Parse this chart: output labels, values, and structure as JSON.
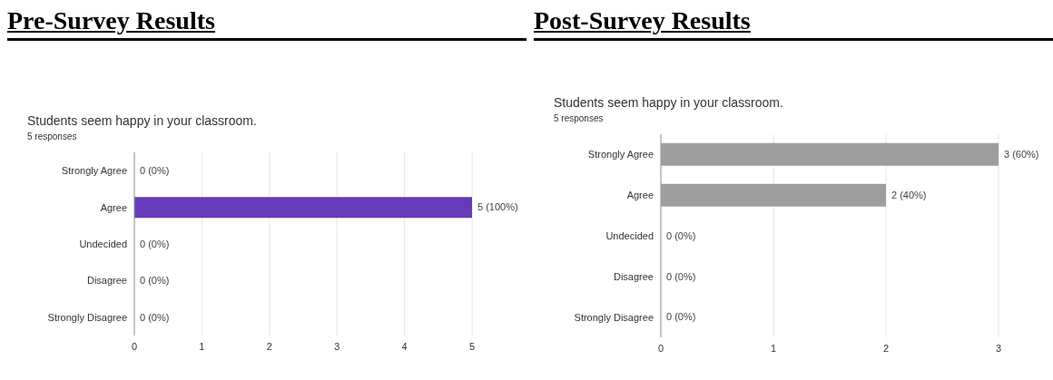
{
  "chart_data": [
    {
      "type": "bar",
      "orientation": "horizontal",
      "title": "Pre-Survey Results",
      "subtitle": "Students seem happy in your classroom.",
      "annotations": [
        "5 responses"
      ],
      "categories": [
        "Strongly Agree",
        "Agree",
        "Undecided",
        "Disagree",
        "Strongly Disagree"
      ],
      "values": [
        0,
        5,
        0,
        0,
        0
      ],
      "color": "#673ab7",
      "value_labels": [
        "0 (0%)",
        "5 (100%)",
        "0 (0%)",
        "0 (0%)",
        "0 (0%)"
      ],
      "xlim": [
        0,
        5
      ],
      "xticks": [
        0,
        1,
        2,
        3,
        4,
        5
      ],
      "grid": "x",
      "legend": false
    },
    {
      "type": "bar",
      "orientation": "horizontal",
      "title": "Post-Survey Results",
      "subtitle": "Students seem happy in your classroom.",
      "annotations": [
        "5 responses"
      ],
      "categories": [
        "Strongly Agree",
        "Agree",
        "Undecided",
        "Disagree",
        "Strongly Disagree"
      ],
      "values": [
        3,
        2,
        0,
        0,
        0
      ],
      "color": "#9e9e9e",
      "value_labels": [
        "3 (60%)",
        "2 (40%)",
        "0 (0%)",
        "0 (0%)",
        "0 (0%)"
      ],
      "xlim": [
        0,
        3
      ],
      "xticks": [
        0,
        1,
        2,
        3
      ],
      "grid": "x",
      "legend": false
    }
  ]
}
